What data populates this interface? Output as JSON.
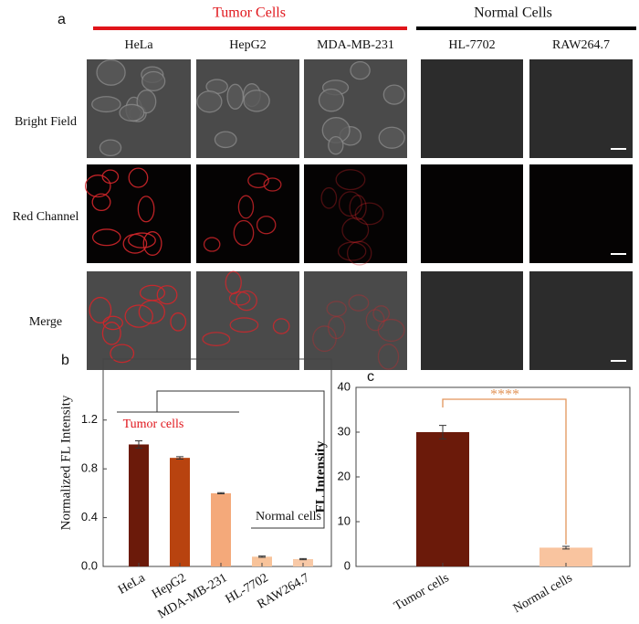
{
  "panel_a": {
    "label": "a",
    "groups": [
      "Tumor Cells",
      "Normal Cells"
    ],
    "columns": [
      "HeLa",
      "HepG2",
      "MDA-MB-231",
      "HL-7702",
      "RAW264.7"
    ],
    "rows": [
      "Bright Field",
      "Red Channel",
      "Merge"
    ]
  },
  "chart_data": [
    {
      "type": "bar",
      "label": "b",
      "ylabel": "Normalized FL Intensity",
      "categories": [
        "HeLa",
        "HepG2",
        "MDA-MB-231",
        "HL-7702",
        "RAW264.7"
      ],
      "values": [
        1.0,
        0.89,
        0.6,
        0.08,
        0.06
      ],
      "errors": [
        0.03,
        0.01,
        0.005,
        0.005,
        0.005
      ],
      "colors": [
        "#6b1a0a",
        "#b8430f",
        "#f4a97a",
        "#f8c39a",
        "#f8c9a7"
      ],
      "ylim": [
        0,
        1.7
      ],
      "yticks": [
        {
          "value": 0,
          "label": "0.0"
        },
        0.4,
        0.8,
        1.2
      ],
      "annotations": [
        "Tumor cells",
        "Normal cells"
      ]
    },
    {
      "type": "bar",
      "label": "c",
      "ylabel": "FL Intensity",
      "categories": [
        "Tumor cells",
        "Normal cells"
      ],
      "values": [
        30,
        4.2
      ],
      "errors": [
        1.5,
        0.3
      ],
      "colors": [
        "#6b1a0a",
        "#f9c49f"
      ],
      "ylim": [
        0,
        40
      ],
      "yticks": [
        0,
        10,
        20,
        30,
        40
      ],
      "annotations": [
        "****"
      ]
    }
  ]
}
